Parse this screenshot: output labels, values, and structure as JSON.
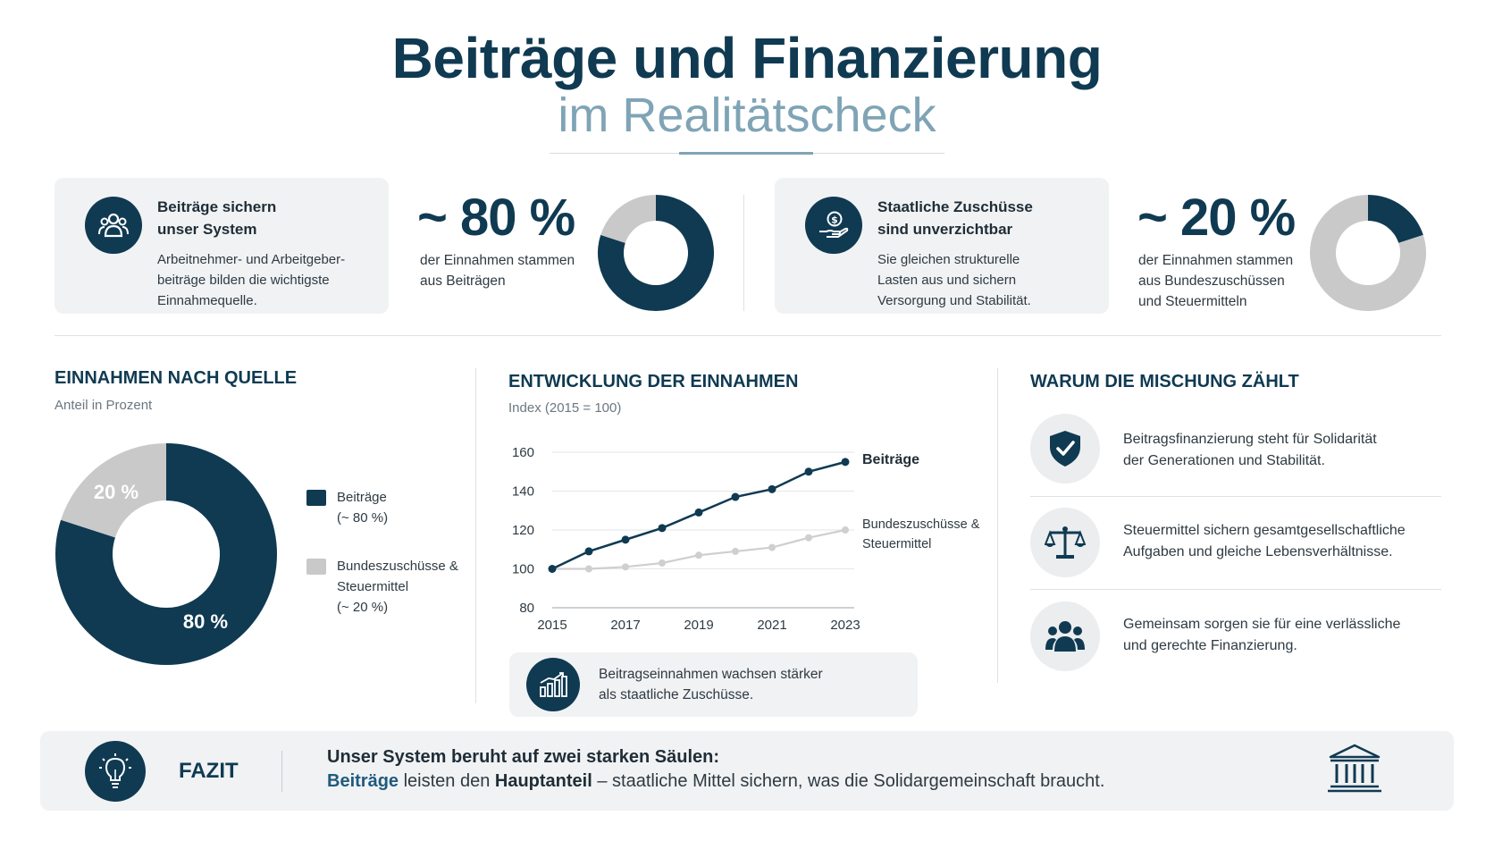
{
  "header": {
    "title": "Beiträge und Finanzierung",
    "subtitle": "im Realitätscheck"
  },
  "top": {
    "card1": {
      "icon": "people-group-icon",
      "title_line1": "Beiträge sichern",
      "title_line2": "unser System",
      "text_line1": "Arbeitnehmer- und Arbeitgeber-",
      "text_line2": "beiträge bilden die wichtigste",
      "text_line3": "Einnahmequelle."
    },
    "stat1": {
      "value": "~ 80 %",
      "desc_line1": "der Einnahmen stammen",
      "desc_line2": "aus Beiträgen",
      "share": 80
    },
    "card2": {
      "icon": "coin-hand-icon",
      "title_line1": "Staatliche Zuschüsse",
      "title_line2": "sind unverzichtbar",
      "text_line1": "Sie gleichen strukturelle",
      "text_line2": "Lasten aus und sichern",
      "text_line3": "Versorgung und Stabilität."
    },
    "stat2": {
      "value": "~ 20 %",
      "desc_line1": "der Einnahmen stammen",
      "desc_line2": "aus Bundeszuschüssen",
      "desc_line3": "und Steuermitteln",
      "share": 20
    }
  },
  "sources": {
    "title": "EINNAHMEN NACH QUELLE",
    "subtitle": "Anteil in Prozent",
    "label_small": "20 %",
    "label_large": "80 %",
    "legend": [
      {
        "line1": "Beiträge",
        "line2": "(~ 80 %)",
        "color": "#0f3a52"
      },
      {
        "line1": "Bundeszuschüsse &",
        "line2": "Steuermittel",
        "line3": "(~ 20 %)",
        "color": "#c9c9c9"
      }
    ]
  },
  "development": {
    "title": "ENTWICKLUNG DER EINNAHMEN",
    "subtitle": "Index (2015 = 100)",
    "note_line1": "Beitragseinnahmen wachsen stärker",
    "note_line2": "als staatliche Zuschüsse.",
    "note_icon": "growth-chart-icon",
    "series_label_1": "Beiträge",
    "series_label_2_line1": "Bundeszuschüsse &",
    "series_label_2_line2": "Steuermittel"
  },
  "reasons": {
    "title": "WARUM DIE MISCHUNG ZÄHLT",
    "items": [
      {
        "icon": "shield-check-icon",
        "line1": "Beitragsfinanzierung steht für Solidarität",
        "line2": "der Generationen und Stabilität."
      },
      {
        "icon": "balance-scale-icon",
        "line1": "Steuermittel sichern gesamtgesellschaftliche",
        "line2": "Aufgaben und gleiche Lebensverhältnisse."
      },
      {
        "icon": "people-icon",
        "line1": "Gemeinsam sorgen sie für eine verlässliche",
        "line2": "und gerechte Finanzierung."
      }
    ]
  },
  "fazit": {
    "icon": "lightbulb-icon",
    "label": "FAZIT",
    "line1": "Unser System beruht auf zwei starken Säulen:",
    "line2_part1": "Beiträge",
    "line2_part2": " leisten den ",
    "line2_part3": "Hauptanteil",
    "line2_part4": " – staatliche Mittel sichern, was die Solidargemeinschaft braucht.",
    "end_icon": "institution-building-icon"
  },
  "colors": {
    "navy": "#0f3a52",
    "gray": "#c9c9c9",
    "light_gray_line": "#cfcfcf",
    "accent_light": "#7fa4b6"
  },
  "chart_data": [
    {
      "type": "pie",
      "title": "EINNAHMEN NACH QUELLE",
      "subtitle": "Anteil in Prozent",
      "categories": [
        "Beiträge",
        "Bundeszuschüsse & Steuermittel"
      ],
      "values": [
        80,
        20
      ],
      "legend": "right"
    },
    {
      "type": "line",
      "title": "ENTWICKLUNG DER EINNAHMEN",
      "subtitle": "Index (2015 = 100)",
      "x": [
        2015,
        2016,
        2017,
        2018,
        2019,
        2020,
        2021,
        2022,
        2023
      ],
      "x_ticks": [
        2015,
        2017,
        2019,
        2021,
        2023
      ],
      "y_ticks": [
        80,
        100,
        120,
        140,
        160
      ],
      "ylim": [
        80,
        160
      ],
      "grid": true,
      "series": [
        {
          "name": "Beiträge",
          "values": [
            100,
            109,
            115,
            121,
            129,
            137,
            141,
            150,
            155
          ]
        },
        {
          "name": "Bundeszuschüsse & Steuermittel",
          "values": [
            100,
            100,
            101,
            103,
            107,
            109,
            111,
            116,
            120
          ]
        }
      ]
    }
  ]
}
